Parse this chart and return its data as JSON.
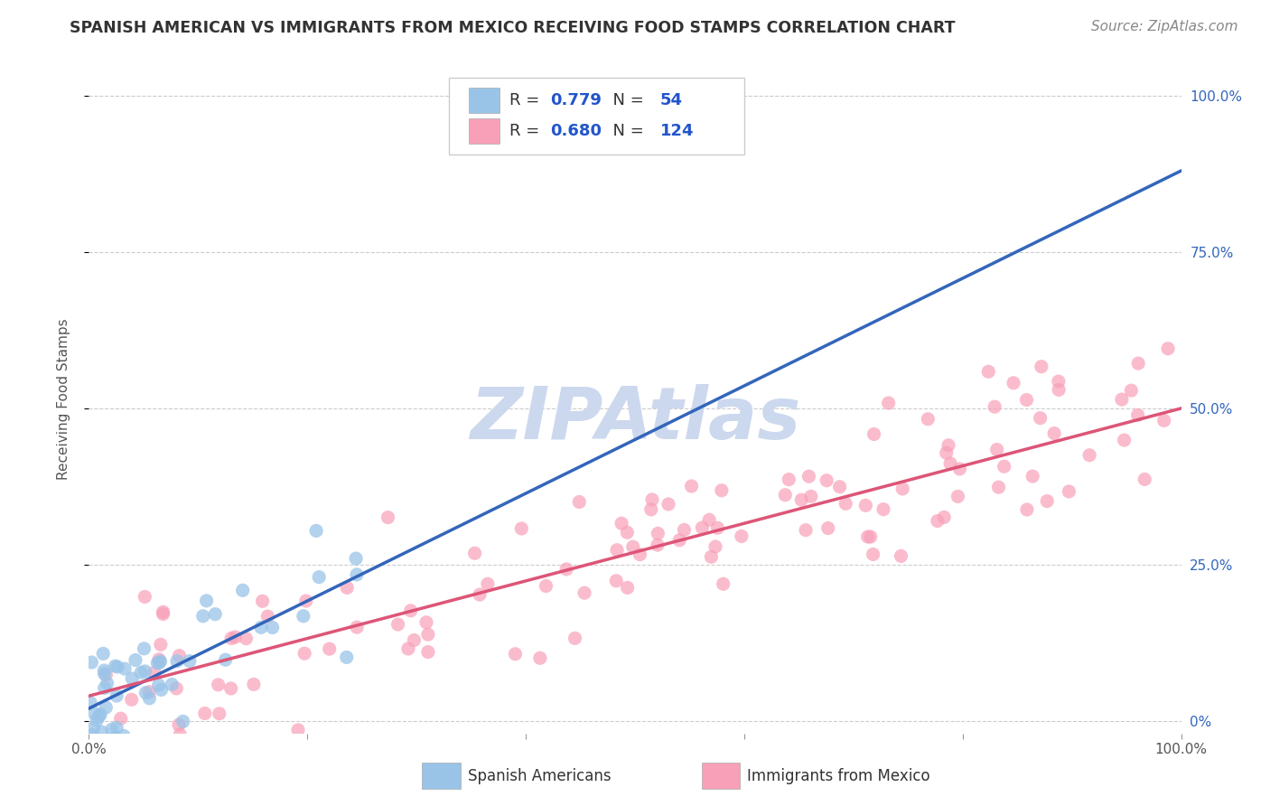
{
  "title": "SPANISH AMERICAN VS IMMIGRANTS FROM MEXICO RECEIVING FOOD STAMPS CORRELATION CHART",
  "source": "Source: ZipAtlas.com",
  "ylabel": "Receiving Food Stamps",
  "xlim": [
    0.0,
    1.0
  ],
  "ylim": [
    -0.02,
    1.05
  ],
  "series": [
    {
      "name": "Spanish Americans",
      "dot_color": "#99c4e8",
      "R": 0.779,
      "N": 54,
      "line_color": "#3366bb",
      "seed": 42,
      "x_max": 0.32,
      "slope": 1.0,
      "intercept": 0.01,
      "noise_std": 0.055
    },
    {
      "name": "Immigrants from Mexico",
      "dot_color": "#f8a0b8",
      "R": 0.68,
      "N": 124,
      "line_color": "#dd5577",
      "seed": 17,
      "x_max": 1.0,
      "slope": 0.48,
      "intercept": 0.03,
      "noise_std": 0.065
    }
  ],
  "watermark": "ZIPAtlas",
  "watermark_color": "#ccd8ee",
  "grid_color": "#cccccc",
  "background_color": "#ffffff",
  "title_fontsize": 12.5,
  "source_fontsize": 11,
  "axis_tick_fontsize": 11,
  "ylabel_fontsize": 11
}
